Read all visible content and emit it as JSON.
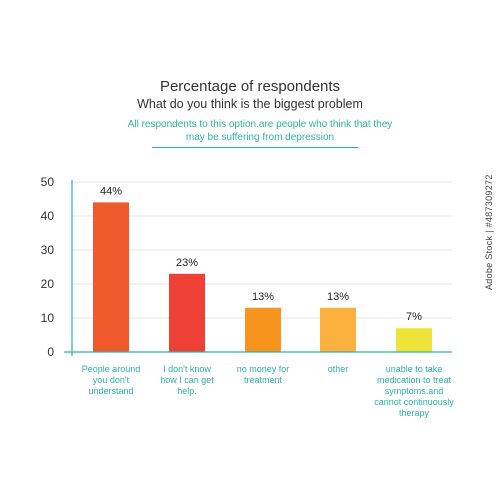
{
  "chart_data": {
    "type": "bar",
    "title": "Percentage of respondents",
    "subtitle": "What do you think is the biggest problem",
    "note": "All respondents to this option.are people who think that they may be suffering from depression",
    "categories": [
      "People around you don't understand",
      "I don't know how I can get help.",
      "no money for treatment",
      "other",
      "unable to take medication to treat symptoms.and cannot continuously therapy"
    ],
    "values": [
      44,
      23,
      13,
      13,
      7
    ],
    "data_labels": [
      "44%",
      "23%",
      "13%",
      "13%",
      "7%"
    ],
    "yticks": [
      "0",
      "10",
      "20",
      "30",
      "40",
      "50"
    ],
    "ylim": [
      0,
      50
    ],
    "grid": true,
    "colors": [
      "#f0592b",
      "#ee4035",
      "#f7941d",
      "#fbb040",
      "#ede43a"
    ]
  },
  "watermark": "Adobe Stock | #487309272"
}
